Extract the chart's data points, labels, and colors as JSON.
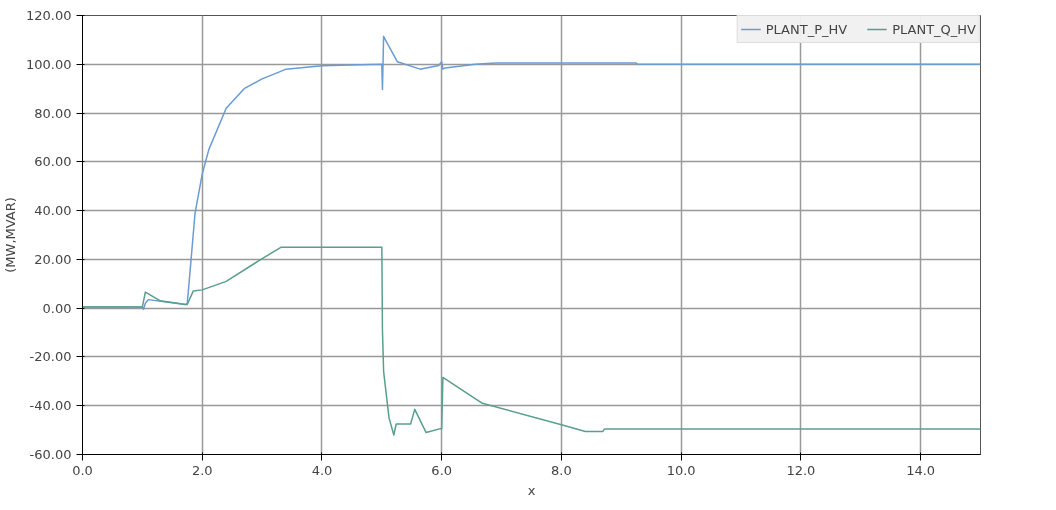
{
  "chart_data": {
    "type": "line",
    "xlabel": "x",
    "ylabel": "(MW,MVAR)",
    "xlim": [
      0,
      15
    ],
    "ylim": [
      -60,
      120
    ],
    "xticks": [
      {
        "value": 0,
        "label": "0.0"
      },
      {
        "value": 2,
        "label": "2.0"
      },
      {
        "value": 4,
        "label": "4.0"
      },
      {
        "value": 6,
        "label": "6.0"
      },
      {
        "value": 8,
        "label": "8.0"
      },
      {
        "value": 10,
        "label": "10.0"
      },
      {
        "value": 12,
        "label": "12.0"
      },
      {
        "value": 14,
        "label": "14.0"
      }
    ],
    "yticks": [
      {
        "value": -60,
        "label": "-60.00"
      },
      {
        "value": -40,
        "label": "-40.00"
      },
      {
        "value": -20,
        "label": "-20.00"
      },
      {
        "value": 0,
        "label": "0.00"
      },
      {
        "value": 20,
        "label": "20.00"
      },
      {
        "value": 40,
        "label": "40.00"
      },
      {
        "value": 60,
        "label": "60.00"
      },
      {
        "value": 80,
        "label": "80.00"
      },
      {
        "value": 100,
        "label": "100.00"
      },
      {
        "value": 120,
        "label": "120.00"
      }
    ],
    "grid": true,
    "legend": "top right",
    "marker": "none",
    "line_style": "solid",
    "series": [
      {
        "name": "PLANT_P_HV",
        "color": "#6a9bd1",
        "x": [
          0,
          1.0,
          1.02,
          1.05,
          1.1,
          1.4,
          1.72,
          1.75,
          1.8,
          1.88,
          2.0,
          2.11,
          2.4,
          2.7,
          3.0,
          3.27,
          3.4,
          4.0,
          5.0,
          5.01,
          5.03,
          5.06,
          5.26,
          5.64,
          5.95,
          6.0,
          6.02,
          6.06,
          6.56,
          6.9,
          9.25,
          9.27,
          15
        ],
        "values": [
          0.5,
          0.5,
          -0.5,
          2,
          3.5,
          2.5,
          1.5,
          2,
          16,
          39,
          55,
          65,
          82,
          90,
          94,
          96.7,
          98,
          99.4,
          100,
          89.7,
          111.5,
          110,
          101,
          98,
          99.5,
          101,
          98,
          98.5,
          100,
          100.5,
          100.5,
          100,
          100
        ]
      },
      {
        "name": "PLANT_Q_HV",
        "color": "#5a9e8e",
        "x": [
          0,
          1.0,
          1.05,
          1.3,
          1.72,
          1.75,
          1.85,
          2.0,
          2.4,
          2.98,
          3.32,
          5.0,
          5.01,
          5.03,
          5.12,
          5.2,
          5.24,
          5.48,
          5.55,
          5.74,
          5.98,
          6.0,
          6.02,
          6.68,
          8.03,
          8.4,
          8.69,
          8.72,
          15
        ],
        "values": [
          0.5,
          0.5,
          6.6,
          3,
          1.5,
          1.5,
          7,
          7.5,
          11,
          20,
          25,
          25,
          -8.6,
          -26,
          -45,
          -52,
          -47.5,
          -47.5,
          -41.5,
          -51,
          -49.4,
          -49.4,
          -28.4,
          -39,
          -48,
          -50.6,
          -50.6,
          -49.5,
          -49.5
        ]
      }
    ]
  }
}
